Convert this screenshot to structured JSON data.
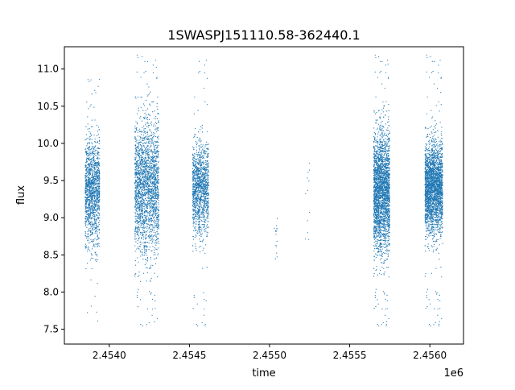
{
  "chart_data": {
    "type": "scatter",
    "title": "1SWASPJ151110.58-362440.1",
    "xlabel": "time",
    "ylabel": "flux",
    "x_offset_label": "1e6",
    "xlim": [
      2.45372,
      2.45621
    ],
    "ylim": [
      7.3,
      11.3
    ],
    "x_ticks": [
      2.454,
      2.4545,
      2.455,
      2.4555,
      2.456
    ],
    "x_tick_labels": [
      "2.4540",
      "2.4545",
      "2.4550",
      "2.4555",
      "2.4560"
    ],
    "y_ticks": [
      7.5,
      8.0,
      8.5,
      9.0,
      9.5,
      10.0,
      10.5,
      11.0
    ],
    "y_tick_labels": [
      "7.5",
      "8.0",
      "8.5",
      "9.0",
      "9.5",
      "10.0",
      "10.5",
      "11.0"
    ],
    "grid": false,
    "marker_color": "#1f77b4",
    "clusters": [
      {
        "x_start": 2.45385,
        "x_end": 2.45394,
        "y_center": 9.35,
        "y_spread": 0.35,
        "y_min": 7.6,
        "y_max": 11.0,
        "count": 1400
      },
      {
        "x_start": 2.45416,
        "x_end": 2.45431,
        "y_center": 9.4,
        "y_spread": 0.45,
        "y_min": 7.5,
        "y_max": 11.2,
        "count": 2200
      },
      {
        "x_start": 2.45452,
        "x_end": 2.45462,
        "y_center": 9.4,
        "y_spread": 0.3,
        "y_min": 7.5,
        "y_max": 11.2,
        "count": 1300
      },
      {
        "x_start": 2.45503,
        "x_end": 2.45505,
        "y_center": 8.75,
        "y_spread": 0.2,
        "y_min": 8.4,
        "y_max": 9.0,
        "count": 15
      },
      {
        "x_start": 2.45522,
        "x_end": 2.45525,
        "y_center": 9.1,
        "y_spread": 0.3,
        "y_min": 8.7,
        "y_max": 9.9,
        "count": 12
      },
      {
        "x_start": 2.45565,
        "x_end": 2.45575,
        "y_center": 9.35,
        "y_spread": 0.4,
        "y_min": 7.5,
        "y_max": 11.2,
        "count": 2600
      },
      {
        "x_start": 2.45597,
        "x_end": 2.45608,
        "y_center": 9.4,
        "y_spread": 0.3,
        "y_min": 7.5,
        "y_max": 11.2,
        "count": 2600
      }
    ]
  }
}
